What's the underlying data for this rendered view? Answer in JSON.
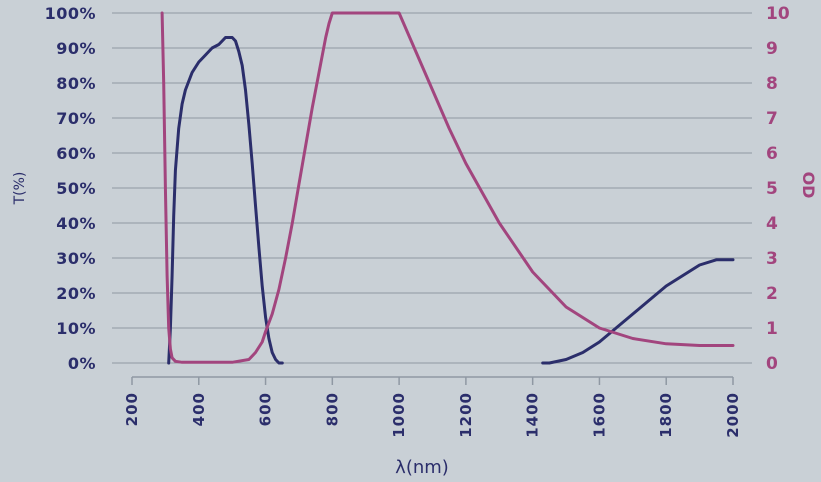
{
  "chart_data": {
    "type": "line",
    "xlabel": "λ(nm)",
    "ylabel_left": "T(%)",
    "ylabel_right": "OD",
    "xlim": [
      200,
      2000
    ],
    "ylim_left": [
      0,
      100
    ],
    "ylim_right": [
      0,
      10
    ],
    "x_ticks": [
      "200",
      "400",
      "600",
      "800",
      "1000",
      "1200",
      "1400",
      "1600",
      "1800",
      "2000"
    ],
    "y_left_ticks": [
      "0%",
      "10%",
      "20%",
      "30%",
      "40%",
      "50%",
      "60%",
      "70%",
      "80%",
      "90%",
      "100%"
    ],
    "y_right_ticks": [
      "0",
      "1",
      "2",
      "3",
      "4",
      "5",
      "6",
      "7",
      "8",
      "9",
      "10"
    ],
    "grid": true,
    "colors": {
      "transmission": "#2b2e6b",
      "od": "#a2457e"
    },
    "series": [
      {
        "axis": "left",
        "color": "#2b2e6b",
        "x": [
          310,
          315,
          320,
          325,
          330,
          340,
          350,
          360,
          380,
          400,
          420,
          440,
          460,
          480,
          500,
          510,
          520,
          530,
          540,
          550,
          560,
          570,
          580,
          590,
          600,
          610,
          620,
          630,
          640,
          650,
          1430,
          1450,
          1500,
          1550,
          1600,
          1650,
          1700,
          1750,
          1800,
          1850,
          1900,
          1950,
          2000
        ],
        "y": [
          0,
          10,
          25,
          42,
          55,
          67,
          74,
          78,
          83,
          86,
          88,
          90,
          91,
          93,
          93,
          92,
          89,
          85,
          78,
          68,
          57,
          45,
          33,
          22,
          13,
          7,
          3,
          1,
          0,
          0,
          0,
          0,
          1,
          3,
          6,
          10,
          14,
          18,
          22,
          25,
          28,
          29.5,
          29.5
        ]
      },
      {
        "axis": "right",
        "color": "#a2457e",
        "x": [
          290,
          295,
          300,
          305,
          310,
          315,
          320,
          330,
          350,
          400,
          450,
          500,
          550,
          570,
          590,
          600,
          620,
          640,
          660,
          680,
          700,
          720,
          740,
          760,
          780,
          790,
          800,
          1000,
          1050,
          1100,
          1150,
          1200,
          1300,
          1400,
          1500,
          1600,
          1700,
          1800,
          1900,
          2000
        ],
        "y": [
          10,
          8,
          5,
          2.5,
          1.0,
          0.4,
          0.15,
          0.05,
          0.02,
          0.02,
          0.02,
          0.02,
          0.1,
          0.3,
          0.6,
          0.9,
          1.4,
          2.1,
          3.0,
          4.0,
          5.1,
          6.2,
          7.3,
          8.3,
          9.3,
          9.7,
          10,
          10,
          8.9,
          7.8,
          6.7,
          5.7,
          4.0,
          2.6,
          1.6,
          1.0,
          0.7,
          0.55,
          0.5,
          0.5
        ]
      }
    ]
  }
}
